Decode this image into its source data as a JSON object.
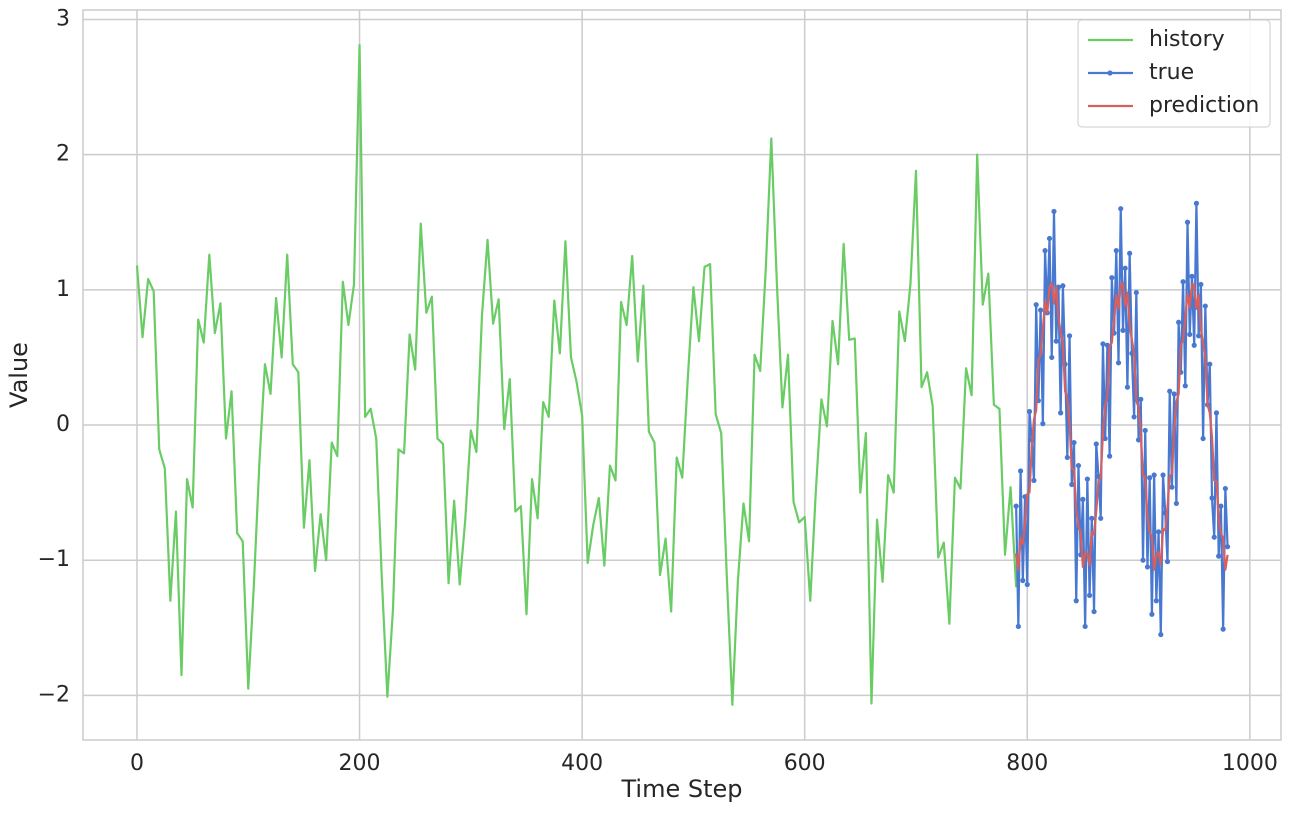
{
  "chart_data": {
    "type": "line",
    "x_label": "Time Step",
    "y_label": "Value",
    "xlim": [
      -48.5,
      1028
    ],
    "xticks": [
      0,
      200,
      400,
      600,
      800,
      1000
    ],
    "ylim": [
      -2.33,
      3.07
    ],
    "yticks": [
      {
        "value": -2,
        "label": "−2"
      },
      {
        "value": -1,
        "label": "−1"
      },
      0,
      1,
      2,
      3
    ],
    "grid": true,
    "legend": "upper right",
    "series": [
      {
        "name": "history",
        "color": "#6acc64",
        "markers": false,
        "x": [
          0,
          5,
          10,
          15,
          20,
          25,
          30,
          35,
          40,
          45,
          50,
          55,
          60,
          65,
          70,
          75,
          80,
          85,
          90,
          95,
          100,
          105,
          110,
          115,
          120,
          125,
          130,
          135,
          140,
          145,
          150,
          155,
          160,
          165,
          170,
          175,
          180,
          185,
          190,
          195,
          200,
          205,
          210,
          215,
          220,
          225,
          230,
          235,
          240,
          245,
          250,
          255,
          260,
          265,
          270,
          275,
          280,
          285,
          290,
          295,
          300,
          305,
          310,
          315,
          320,
          325,
          330,
          335,
          340,
          345,
          350,
          355,
          360,
          365,
          370,
          375,
          380,
          385,
          390,
          395,
          400,
          405,
          410,
          415,
          420,
          425,
          430,
          435,
          440,
          445,
          450,
          455,
          460,
          465,
          470,
          475,
          480,
          485,
          490,
          495,
          500,
          505,
          510,
          515,
          520,
          525,
          530,
          535,
          540,
          545,
          550,
          555,
          560,
          565,
          570,
          575,
          580,
          585,
          590,
          595,
          600,
          605,
          610,
          615,
          620,
          625,
          630,
          635,
          640,
          645,
          650,
          655,
          660,
          665,
          670,
          675,
          680,
          685,
          690,
          695,
          700,
          705,
          710,
          715,
          720,
          725,
          730,
          735,
          740,
          745,
          750,
          755,
          760,
          765,
          770,
          775,
          780,
          785,
          790
        ],
        "values": [
          1.18,
          0.65,
          1.08,
          0.99,
          -0.18,
          -0.32,
          -1.3,
          -0.64,
          -1.85,
          -0.4,
          -0.61,
          0.78,
          0.61,
          1.26,
          0.68,
          0.9,
          -0.1,
          0.25,
          -0.8,
          -0.86,
          -1.95,
          -1.19,
          -0.28,
          0.45,
          0.23,
          0.94,
          0.5,
          1.26,
          0.45,
          0.39,
          -0.76,
          -0.26,
          -1.08,
          -0.66,
          -1.0,
          -0.13,
          -0.23,
          1.06,
          0.74,
          1.04,
          2.81,
          0.06,
          0.12,
          -0.1,
          -1.13,
          -2.01,
          -1.37,
          -0.18,
          -0.21,
          0.67,
          0.41,
          1.49,
          0.83,
          0.95,
          -0.1,
          -0.14,
          -1.17,
          -0.56,
          -1.18,
          -0.7,
          -0.04,
          -0.2,
          0.81,
          1.37,
          0.75,
          0.93,
          -0.03,
          0.34,
          -0.64,
          -0.6,
          -1.4,
          -0.4,
          -0.69,
          0.17,
          0.06,
          0.92,
          0.53,
          1.36,
          0.5,
          0.32,
          0.07,
          -1.02,
          -0.74,
          -0.54,
          -1.04,
          -0.3,
          -0.41,
          0.91,
          0.74,
          1.25,
          0.47,
          1.03,
          -0.05,
          -0.13,
          -1.11,
          -0.84,
          -1.38,
          -0.24,
          -0.39,
          0.35,
          1.02,
          0.62,
          1.17,
          1.19,
          0.08,
          -0.06,
          -1.12,
          -2.07,
          -1.15,
          -0.58,
          -0.86,
          0.52,
          0.4,
          1.15,
          2.12,
          1.05,
          0.13,
          0.52,
          -0.57,
          -0.72,
          -0.68,
          -1.3,
          -0.49,
          0.19,
          -0.01,
          0.77,
          0.45,
          1.34,
          0.63,
          0.64,
          -0.5,
          -0.06,
          -2.06,
          -0.7,
          -1.16,
          -0.37,
          -0.5,
          0.84,
          0.62,
          1.04,
          1.88,
          0.28,
          0.39,
          0.14,
          -0.98,
          -0.87,
          -1.47,
          -0.39,
          -0.47,
          0.42,
          0.22,
          2.0,
          0.89,
          1.12,
          0.15,
          0.12,
          -0.96,
          -0.46,
          -1.2
        ]
      },
      {
        "name": "true",
        "color": "#4878d0",
        "markers": true,
        "x": [
          790,
          792,
          794,
          796,
          798,
          800,
          802,
          804,
          806,
          808,
          810,
          812,
          814,
          816,
          818,
          820,
          822,
          824,
          826,
          828,
          830,
          832,
          834,
          836,
          838,
          840,
          842,
          844,
          846,
          848,
          850,
          852,
          854,
          856,
          858,
          860,
          862,
          864,
          866,
          868,
          870,
          872,
          874,
          876,
          878,
          880,
          882,
          884,
          886,
          888,
          890,
          892,
          894,
          896,
          898,
          900,
          902,
          904,
          906,
          908,
          910,
          912,
          914,
          916,
          918,
          920,
          922,
          924,
          926,
          928,
          930,
          932,
          934,
          936,
          938,
          940,
          942,
          944,
          946,
          948,
          950,
          952,
          954,
          956,
          958,
          960,
          962,
          964,
          966,
          968,
          970,
          972,
          974,
          976,
          978,
          980
        ],
        "values": [
          -0.6,
          -1.49,
          -0.34,
          -1.15,
          -0.53,
          -1.18,
          0.1,
          -0.11,
          -0.41,
          0.89,
          0.18,
          0.85,
          0.01,
          1.29,
          0.83,
          1.38,
          0.5,
          1.58,
          0.62,
          1.02,
          0.09,
          1.03,
          0.45,
          -0.24,
          0.66,
          -0.44,
          -0.13,
          -1.3,
          -0.3,
          -0.96,
          -0.55,
          -1.49,
          -0.4,
          -1.26,
          -0.69,
          -1.38,
          -0.14,
          -0.38,
          -0.69,
          0.6,
          -0.1,
          0.59,
          -0.23,
          1.09,
          0.68,
          1.29,
          0.46,
          1.6,
          0.7,
          1.16,
          0.28,
          1.27,
          0.53,
          0.06,
          0.98,
          -0.11,
          0.19,
          -1.0,
          -0.04,
          -1.05,
          -0.39,
          -1.4,
          -0.37,
          -1.3,
          -0.79,
          -1.55,
          -0.37,
          -0.65,
          -1.01,
          0.25,
          -0.46,
          0.23,
          -0.58,
          0.76,
          0.39,
          1.06,
          0.29,
          1.5,
          0.67,
          1.1,
          0.59,
          1.64,
          0.66,
          1.04,
          -0.1,
          0.88,
          0.15,
          0.45,
          -0.54,
          -0.83,
          0.09,
          -0.97,
          -0.6,
          -1.51,
          -0.47,
          -0.9
        ]
      },
      {
        "name": "prediction",
        "color": "#d65f5f",
        "markers": false,
        "x": [
          790,
          792,
          794,
          796,
          798,
          800,
          802,
          804,
          806,
          808,
          810,
          812,
          814,
          816,
          818,
          820,
          822,
          824,
          826,
          828,
          830,
          832,
          834,
          836,
          838,
          840,
          842,
          844,
          846,
          848,
          850,
          852,
          854,
          856,
          858,
          860,
          862,
          864,
          866,
          868,
          870,
          872,
          874,
          876,
          878,
          880,
          882,
          884,
          886,
          888,
          890,
          892,
          894,
          896,
          898,
          900,
          902,
          904,
          906,
          908,
          910,
          912,
          914,
          916,
          918,
          920,
          922,
          924,
          926,
          928,
          930,
          932,
          934,
          936,
          938,
          940,
          942,
          944,
          946,
          948,
          950,
          952,
          954,
          956,
          958,
          960,
          962,
          964,
          966,
          968,
          970,
          972,
          974,
          976,
          978,
          980
        ],
        "values": [
          -0.95,
          -1.07,
          -0.84,
          -0.88,
          -0.73,
          -0.51,
          -0.5,
          -0.17,
          0.04,
          0.11,
          0.48,
          0.52,
          0.71,
          0.91,
          0.83,
          1.02,
          1.05,
          0.9,
          1.02,
          0.79,
          0.69,
          0.6,
          0.25,
          0.2,
          0.01,
          -0.32,
          -0.33,
          -0.63,
          -0.75,
          -0.79,
          -1.05,
          -0.95,
          -0.95,
          -1.04,
          -0.79,
          -0.81,
          -0.64,
          -0.41,
          -0.39,
          -0.06,
          0.15,
          0.21,
          0.58,
          0.61,
          0.78,
          0.96,
          0.86,
          1.04,
          1.05,
          0.88,
          0.98,
          0.74,
          0.63,
          0.53,
          0.18,
          0.13,
          -0.06,
          -0.38,
          -0.38,
          -0.68,
          -0.79,
          -0.83,
          -1.07,
          -0.96,
          -0.94,
          -1.03,
          -0.77,
          -0.78,
          -0.61,
          -0.38,
          -0.36,
          -0.03,
          0.17,
          0.23,
          0.59,
          0.63,
          0.79,
          0.97,
          0.87,
          1.04,
          1.04,
          0.86,
          0.96,
          0.71,
          0.6,
          0.5,
          0.15,
          0.09,
          -0.09,
          -0.41,
          -0.41,
          -0.7,
          -0.8,
          -0.84,
          -1.07,
          -0.96
        ]
      }
    ]
  }
}
